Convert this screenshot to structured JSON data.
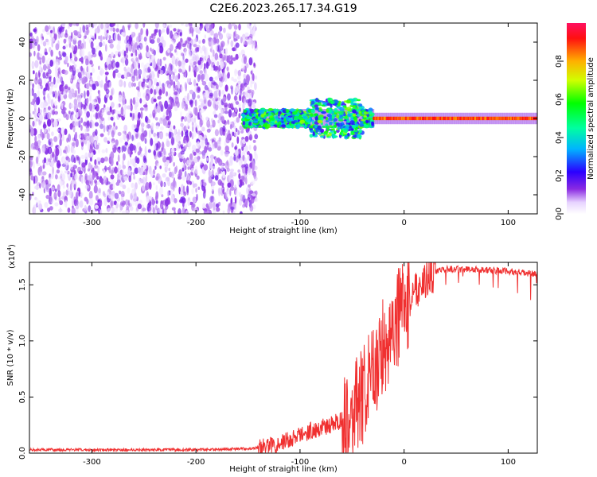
{
  "figure": {
    "title": "C2E6.2023.265.17.34.G19"
  },
  "chart_data": [
    {
      "type": "heatmap",
      "xlabel": "Height of straight line (km)",
      "ylabel": "Frequency (Hz)",
      "xlim": [
        -360,
        128
      ],
      "ylim": [
        -50,
        50
      ],
      "x_ticks": [
        -300,
        -200,
        -100,
        0,
        100
      ],
      "x_tick_labels": [
        "-300",
        "-200",
        "-100",
        "0",
        "100"
      ],
      "y_ticks": [
        40,
        20,
        0,
        -20,
        -40
      ],
      "y_tick_labels": [
        "40",
        "20",
        "0",
        "-20",
        "-40"
      ],
      "colorbar": {
        "label": "Normalized spectral amplitude",
        "range": [
          0,
          1
        ],
        "ticks": [
          0.0,
          0.2,
          0.4,
          0.6,
          0.8
        ],
        "tick_labels": [
          "0.0",
          "0.2",
          "0.4",
          "0.6",
          "0.8"
        ],
        "colormap_stops": [
          {
            "v": 0.0,
            "color": "#ffffff"
          },
          {
            "v": 0.06,
            "color": "#e7d3ff"
          },
          {
            "v": 0.13,
            "color": "#8a2be2"
          },
          {
            "v": 0.22,
            "color": "#2b00ff"
          },
          {
            "v": 0.34,
            "color": "#00b4ff"
          },
          {
            "v": 0.45,
            "color": "#00ffa0"
          },
          {
            "v": 0.58,
            "color": "#00ff00"
          },
          {
            "v": 0.7,
            "color": "#d0ff00"
          },
          {
            "v": 0.8,
            "color": "#ffb000"
          },
          {
            "v": 0.92,
            "color": "#ff1010"
          },
          {
            "v": 1.0,
            "color": "#ff1060"
          }
        ]
      },
      "regions": {
        "noise_band": {
          "x_range": [
            -360,
            -150
          ],
          "freq_range": [
            -50,
            50
          ],
          "typical_amplitude": 0.12
        },
        "scintillation_band": {
          "x_range": [
            -155,
            -30
          ],
          "center_freq": 0,
          "freq_halfwidth": 5,
          "typical_amplitude": 0.5
        },
        "carrier_line": {
          "x_range": [
            -30,
            128
          ],
          "center_freq": 0,
          "freq_halfwidth": 2,
          "typical_amplitude": 0.95
        }
      }
    },
    {
      "type": "line",
      "xlabel": "Height of straight line (km)",
      "ylabel": "SNR (10 * v/v)",
      "y_scale_label": "(x10",
      "y_scale_exponent": "4",
      "y_scale_suffix": ")",
      "xlim": [
        -360,
        128
      ],
      "ylim": [
        0,
        1.7
      ],
      "x_ticks": [
        -300,
        -200,
        -100,
        0,
        100
      ],
      "x_tick_labels": [
        "-300",
        "-200",
        "-100",
        "0",
        "100"
      ],
      "y_ticks": [
        0.0,
        0.5,
        1.0,
        1.5
      ],
      "y_tick_labels": [
        "0.0",
        "0.5",
        "1.0",
        "1.5"
      ],
      "line_color": "#f03030",
      "series": [
        {
          "x": [
            -360,
            -300,
            -250,
            -200,
            -150,
            -130,
            -110,
            -90,
            -70,
            -50,
            -40,
            -30,
            -20,
            -10,
            0,
            10,
            20,
            30,
            40,
            60,
            80,
            100,
            120,
            128
          ],
          "y": [
            0.03,
            0.03,
            0.03,
            0.03,
            0.04,
            0.06,
            0.12,
            0.2,
            0.25,
            0.35,
            0.5,
            0.7,
            0.95,
            1.15,
            1.3,
            1.45,
            1.55,
            1.62,
            1.64,
            1.64,
            1.63,
            1.62,
            1.6,
            1.59
          ]
        }
      ]
    }
  ]
}
